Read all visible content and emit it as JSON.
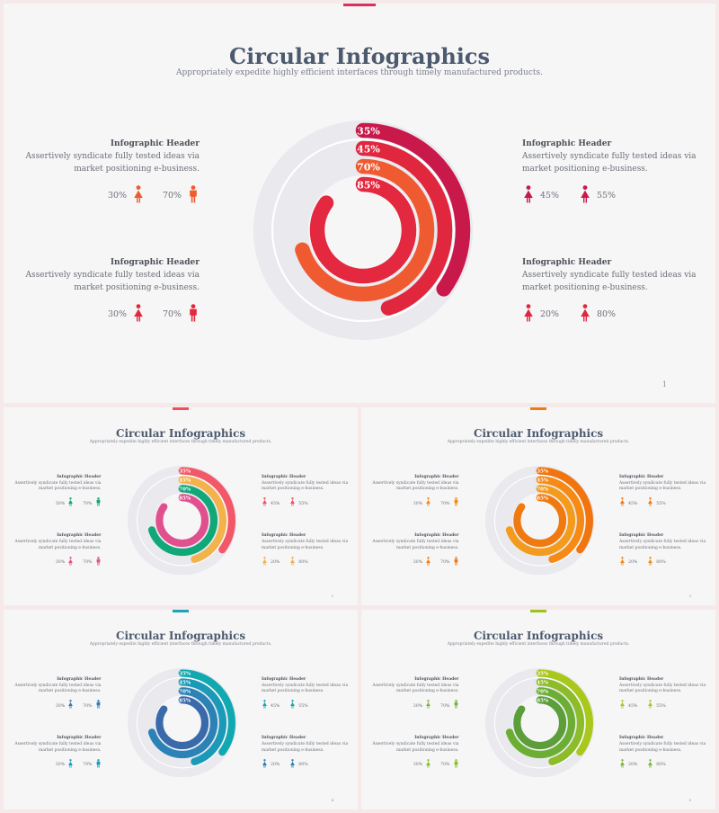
{
  "title": "Circular Infographics",
  "subtitle": "Appropriately expedite highly efficient interfaces through timely manufactured products.",
  "blocks": [
    {
      "header": "Infographic Header",
      "line1": "Assertively syndicate fully  tested ideas via",
      "line2": "market positioning e-business.",
      "s1": "30%",
      "s2": "70%"
    },
    {
      "header": "Infographic Header",
      "line1": "Assertively syndicate fully  tested ideas via",
      "line2": "market positioning e-business.",
      "s1": "30%",
      "s2": "70%"
    },
    {
      "header": "Infographic Header",
      "line1": "Assertively syndicate fully  tested ideas via",
      "line2": "market positioning e-business.",
      "s1": "45%",
      "s2": "55%"
    },
    {
      "header": "Infographic Header",
      "line1": "Assertively syndicate fully  tested ideas via",
      "line2": "market positioning e-business.",
      "s1": "20%",
      "s2": "80%"
    }
  ],
  "rings": [
    {
      "label": "35%",
      "value": 35
    },
    {
      "label": "45%",
      "value": 45
    },
    {
      "label": "70%",
      "value": 70
    },
    {
      "label": "85%",
      "value": 85
    }
  ],
  "slides": [
    {
      "page": "1",
      "accent": "#d6325c",
      "colors": [
        "#c9184a",
        "#e0273e",
        "#f05a30",
        "#e3283f"
      ],
      "icons": [
        "#f05a30",
        "#e3283f",
        "#c9184a",
        "#e0273e"
      ]
    },
    {
      "page": "2",
      "accent": "#ee4f5e",
      "colors": [
        "#f25868",
        "#f4b24a",
        "#10a878",
        "#e0508e"
      ],
      "icons": [
        "#11a278",
        "#e0508e",
        "#ee4f5e",
        "#f2ae4a"
      ]
    },
    {
      "page": "3",
      "accent": "#f07a12",
      "colors": [
        "#f0750f",
        "#f68a14",
        "#f39b1c",
        "#f07a12"
      ],
      "icons": [
        "#f08a16",
        "#f07a12",
        "#f07a12",
        "#f08a16"
      ]
    },
    {
      "page": "4",
      "accent": "#1aa4b8",
      "colors": [
        "#12a8b0",
        "#1a9ab8",
        "#2a82b6",
        "#3a6aaa"
      ],
      "icons": [
        "#2a7eb6",
        "#1a9ab8",
        "#12a8b0",
        "#2a7eb6"
      ]
    },
    {
      "page": "5",
      "accent": "#9cc21c",
      "colors": [
        "#a8c81c",
        "#8cbc28",
        "#6cae34",
        "#5c9e3a"
      ],
      "icons": [
        "#7cb43a",
        "#8cbc28",
        "#a8c81c",
        "#7cb43a"
      ]
    }
  ]
}
